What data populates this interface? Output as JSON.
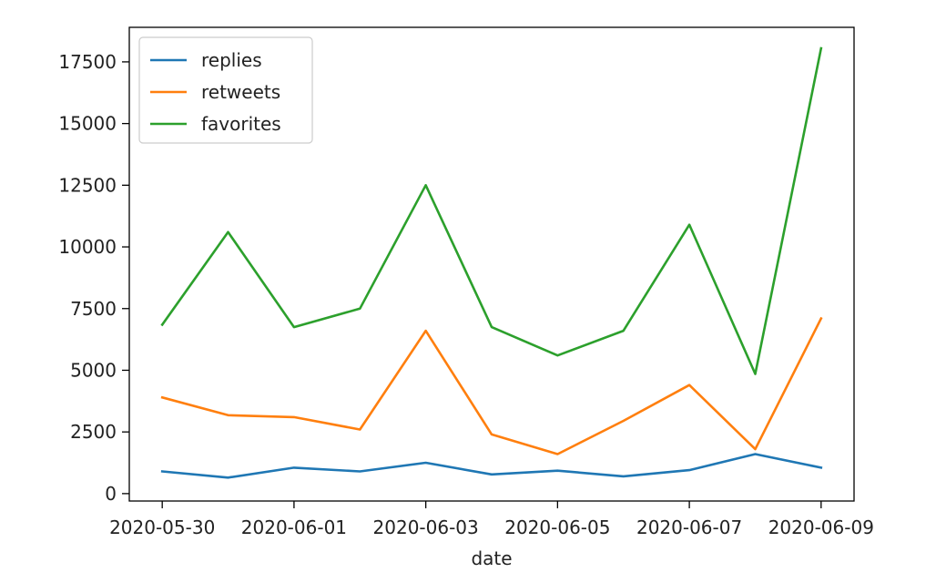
{
  "chart_data": {
    "type": "line",
    "xlabel": "date",
    "ylabel": "",
    "title": "",
    "x": [
      "2020-05-30",
      "2020-05-31",
      "2020-06-01",
      "2020-06-02",
      "2020-06-03",
      "2020-06-04",
      "2020-06-05",
      "2020-06-06",
      "2020-06-07",
      "2020-06-08",
      "2020-06-09"
    ],
    "xticks": [
      "2020-05-30",
      "2020-06-01",
      "2020-06-03",
      "2020-06-05",
      "2020-06-07",
      "2020-06-09"
    ],
    "yticks": [
      0,
      2500,
      5000,
      7500,
      10000,
      12500,
      15000,
      17500
    ],
    "ylim": [
      -300,
      18900
    ],
    "xlim": [
      "2020-05-29T12:00",
      "2020-06-09T12:00"
    ],
    "grid": false,
    "legend": "top-left",
    "series": [
      {
        "name": "replies",
        "color": "#1f77b4",
        "values": [
          900,
          650,
          1050,
          900,
          1250,
          780,
          930,
          700,
          950,
          1600,
          1050
        ]
      },
      {
        "name": "retweets",
        "color": "#ff7f0e",
        "values": [
          3900,
          3180,
          3100,
          2600,
          6600,
          2400,
          1600,
          2950,
          4400,
          1800,
          7100
        ]
      },
      {
        "name": "favorites",
        "color": "#2ca02c",
        "values": [
          6850,
          10600,
          6750,
          7500,
          12500,
          6750,
          5600,
          6600,
          10900,
          4850,
          18050
        ]
      }
    ]
  }
}
